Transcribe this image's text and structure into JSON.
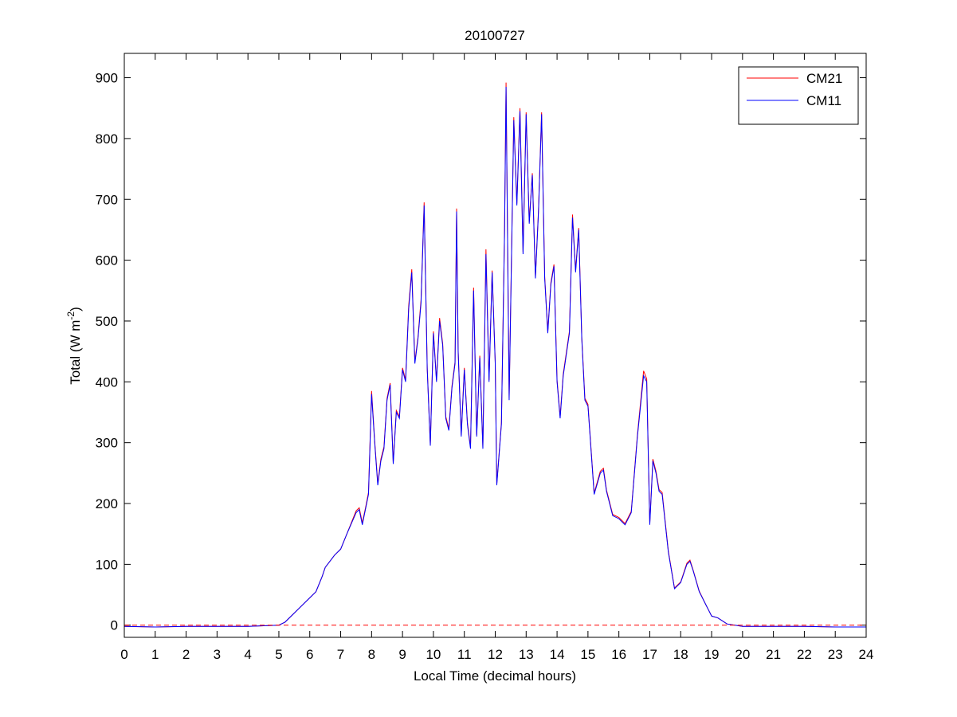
{
  "chart_data": {
    "type": "line",
    "title": "20100727",
    "xlabel": "Local Time (decimal hours)",
    "ylabel": {
      "text": "Total (W m",
      "superscript": "-2",
      "suffix": ")"
    },
    "xlim": [
      0,
      24
    ],
    "ylim": [
      -20,
      940
    ],
    "xticks": [
      0,
      1,
      2,
      3,
      4,
      5,
      6,
      7,
      8,
      9,
      10,
      11,
      12,
      13,
      14,
      15,
      16,
      17,
      18,
      19,
      20,
      21,
      22,
      23,
      24
    ],
    "yticks": [
      0,
      100,
      200,
      300,
      400,
      500,
      600,
      700,
      800,
      900
    ],
    "legend": "top-right",
    "reference_line": {
      "value": 0,
      "color": "#ff0000"
    },
    "x": [
      0,
      1,
      2,
      3,
      4,
      5,
      5.2,
      5.5,
      5.8,
      6.0,
      6.2,
      6.4,
      6.5,
      6.8,
      7.0,
      7.2,
      7.5,
      7.6,
      7.7,
      7.8,
      7.9,
      8.0,
      8.1,
      8.2,
      8.3,
      8.4,
      8.5,
      8.6,
      8.7,
      8.8,
      8.9,
      9.0,
      9.1,
      9.2,
      9.3,
      9.4,
      9.5,
      9.6,
      9.7,
      9.8,
      9.9,
      10.0,
      10.1,
      10.2,
      10.3,
      10.4,
      10.5,
      10.6,
      10.7,
      10.75,
      10.8,
      10.9,
      11.0,
      11.1,
      11.2,
      11.3,
      11.4,
      11.5,
      11.6,
      11.7,
      11.8,
      11.9,
      12.0,
      12.05,
      12.2,
      12.3,
      12.35,
      12.45,
      12.6,
      12.7,
      12.8,
      12.9,
      13.0,
      13.1,
      13.2,
      13.3,
      13.4,
      13.5,
      13.6,
      13.7,
      13.8,
      13.9,
      14.0,
      14.1,
      14.2,
      14.4,
      14.5,
      14.6,
      14.7,
      14.8,
      14.9,
      15.0,
      15.2,
      15.4,
      15.5,
      15.6,
      15.8,
      16.0,
      16.2,
      16.4,
      16.6,
      16.8,
      16.9,
      17.0,
      17.1,
      17.2,
      17.3,
      17.4,
      17.6,
      17.8,
      18.0,
      18.2,
      18.3,
      18.4,
      18.6,
      18.8,
      19.0,
      19.2,
      19.5,
      20,
      21,
      22,
      23,
      24
    ],
    "series": [
      {
        "name": "CM21",
        "color": "#ff0000",
        "values": [
          -2,
          -3,
          -2,
          -2,
          -2,
          0,
          5,
          20,
          35,
          45,
          55,
          80,
          95,
          115,
          125,
          150,
          188,
          193,
          168,
          192,
          218,
          385,
          303,
          233,
          273,
          293,
          373,
          398,
          268,
          353,
          343,
          423,
          403,
          525,
          585,
          433,
          473,
          535,
          695,
          423,
          297,
          483,
          403,
          505,
          463,
          343,
          323,
          393,
          433,
          685,
          453,
          313,
          423,
          333,
          293,
          555,
          313,
          443,
          293,
          618,
          403,
          583,
          433,
          232,
          333,
          645,
          892,
          373,
          835,
          693,
          850,
          613,
          843,
          663,
          743,
          573,
          683,
          843,
          573,
          483,
          563,
          593,
          403,
          343,
          413,
          483,
          675,
          583,
          653,
          473,
          373,
          363,
          217,
          253,
          258,
          222,
          182,
          177,
          167,
          187,
          313,
          418,
          405,
          168,
          273,
          253,
          223,
          218,
          122,
          61,
          71,
          102,
          107,
          91,
          56,
          35,
          15,
          12,
          2,
          -2,
          -2,
          -2,
          -3,
          -3
        ]
      },
      {
        "name": "CM11",
        "color": "#0000ff",
        "values": [
          -2,
          -3,
          -2,
          -2,
          -2,
          0,
          5,
          20,
          35,
          45,
          55,
          80,
          95,
          115,
          125,
          150,
          185,
          190,
          165,
          190,
          215,
          380,
          300,
          230,
          270,
          290,
          370,
          395,
          265,
          350,
          340,
          420,
          400,
          520,
          580,
          430,
          470,
          530,
          690,
          420,
          295,
          480,
          400,
          500,
          460,
          340,
          320,
          390,
          430,
          680,
          450,
          310,
          420,
          330,
          290,
          550,
          310,
          440,
          290,
          610,
          400,
          580,
          430,
          230,
          330,
          640,
          885,
          370,
          830,
          690,
          845,
          610,
          840,
          660,
          740,
          570,
          680,
          840,
          570,
          480,
          560,
          590,
          400,
          340,
          410,
          480,
          670,
          580,
          650,
          470,
          370,
          360,
          215,
          250,
          255,
          220,
          180,
          175,
          165,
          185,
          310,
          410,
          400,
          165,
          270,
          250,
          220,
          215,
          120,
          60,
          70,
          100,
          105,
          90,
          55,
          35,
          15,
          12,
          2,
          -2,
          -2,
          -2,
          -3,
          -3
        ]
      }
    ]
  }
}
